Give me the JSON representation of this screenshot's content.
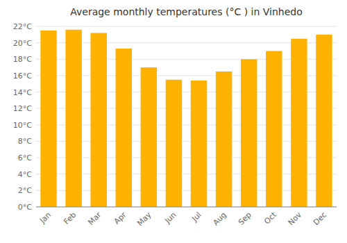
{
  "chart_data": {
    "type": "bar",
    "title": "Average monthly temperatures (°C ) in Vinhedo",
    "categories": [
      "Jan",
      "Feb",
      "Mar",
      "Apr",
      "May",
      "Jun",
      "Jul",
      "Aug",
      "Sep",
      "Oct",
      "Nov",
      "Dec"
    ],
    "values": [
      21.5,
      21.6,
      21.2,
      19.3,
      17.0,
      15.5,
      15.4,
      16.5,
      18.0,
      19.0,
      20.5,
      21.0
    ],
    "color": "#FFB300",
    "ylim": [
      0,
      22
    ],
    "yticks": [
      {
        "value": 0,
        "label": "0°C"
      },
      {
        "value": 2,
        "label": "2°C"
      },
      {
        "value": 4,
        "label": "4°C"
      },
      {
        "value": 6,
        "label": "6°C"
      },
      {
        "value": 8,
        "label": "8°C"
      },
      {
        "value": 10,
        "label": "10°C"
      },
      {
        "value": 12,
        "label": "12°C"
      },
      {
        "value": 14,
        "label": "14°C"
      },
      {
        "value": 16,
        "label": "16°C"
      },
      {
        "value": 18,
        "label": "18°C"
      },
      {
        "value": 20,
        "label": "20°C"
      },
      {
        "value": 22,
        "label": "22°C"
      }
    ],
    "grid": true
  }
}
